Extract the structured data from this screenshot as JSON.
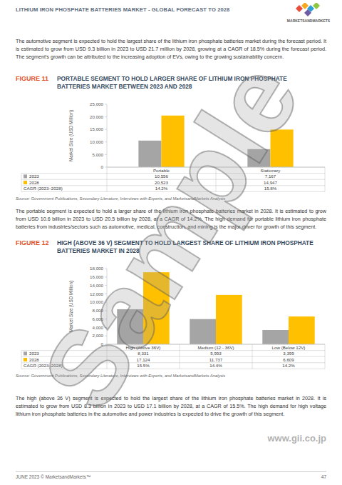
{
  "header": {
    "title": "LITHIUM IRON PHOSPHATE BATTERIES MARKET - GLOBAL FORECAST TO 2028",
    "logo": "MARKETSANDMARKETS"
  },
  "paragraphs": [
    "The automotive segment is expected to hold the largest share of the lithium iron phosphate batteries market during the forecast period. It is estimated to grow from USD 9.3 billion in 2023 to USD 21.7 million by 2028, growing at a CAGR of 18.5% during the forecast period. The segment's growth can be attributed to the increasing adoption of EVs, owing to the growing sustainability concern.",
    "The portable segment is expected to hold a larger share of the lithium iron phosphate batteries market in 2028. It is estimated to grow from USD 10.6 billion in 2023 to USD 20.5 billion by 2028, at a CAGR of 14.2%. The high demand for portable lithium iron phosphate batteries from industries/sectors such as automotive, medical, construction, and mining is the major driver for growth of this segment.",
    "The high (above 36 V) segment is expected to hold the largest share of the lithium iron phosphate batteries market in 2028. It is estimated to grow from USD 8.3 billion in 2023 to USD 17.1 billion by 2028, at a CAGR of 15.5%. The high demand for high voltage lithium iron phosphate batteries in the automotive and power industries is expected to drive the growth of this segment."
  ],
  "figures": [
    {
      "label": "FIGURE 11",
      "source": "Source: Government Publications, Secondary Literature, Interviews with Experts, and MarketsandMarkets Analysis"
    },
    {
      "label": "FIGURE 12",
      "source": "Source: Government Publications, Secondary Literature, Interviews with Experts, and MarketsandMarkets Analysis"
    }
  ],
  "chart_data": [
    {
      "type": "bar",
      "title": "PORTABLE SEGMENT TO HOLD LARGER SHARE OF LITHIUM IRON PHOSPHATE BATTERIES MARKET BETWEEN 2023 AND 2028",
      "ylabel": "Market Size (USD Million)",
      "categories": [
        "Portable",
        "Stationary"
      ],
      "series": [
        {
          "name": "2023",
          "color": "#a5a5a5",
          "values": [
            10556,
            7167
          ],
          "value_labels": [
            "10,556",
            "7,167"
          ]
        },
        {
          "name": "2028",
          "color": "#ffc000",
          "values": [
            20523,
            14947
          ],
          "value_labels": [
            "20,523",
            "14,947"
          ]
        }
      ],
      "cagr": {
        "label": "CAGR (2023–2028)",
        "values": [
          "14.2%",
          "15.8%"
        ]
      },
      "ylim": [
        0,
        25000
      ],
      "yticks": [
        0,
        {
          "value": 5000,
          "label": "5,000"
        },
        {
          "value": 10000,
          "label": "10,000"
        },
        {
          "value": 15000,
          "label": "15,000"
        },
        {
          "value": 20000,
          "label": "20,000"
        },
        {
          "value": 25000,
          "label": "25,000"
        }
      ],
      "grid": false
    },
    {
      "type": "bar",
      "title": "HIGH (ABOVE 36 V) SEGMENT TO HOLD LARGEST SHARE OF LITHIUM IRON PHOSPHATE BATTERIES MARKET IN 2028",
      "ylabel": "Market Size (USD Million)",
      "categories": [
        "High (Above 36V)",
        "Medium (12 - 36V)",
        "Low (Below 12V)"
      ],
      "series": [
        {
          "name": "2023",
          "color": "#a5a5a5",
          "values": [
            8331,
            5993,
            3399
          ],
          "value_labels": [
            "8,331",
            "5,993",
            "3,399"
          ]
        },
        {
          "name": "2028",
          "color": "#ffc000",
          "values": [
            17124,
            11737,
            6609
          ],
          "value_labels": [
            "17,124",
            "11,737",
            "6,609"
          ]
        }
      ],
      "cagr": {
        "label": "CAGR (2023–2028)",
        "values": [
          "15.5%",
          "14.4%",
          "14.2%"
        ]
      },
      "ylim": [
        0,
        18000
      ],
      "yticks": [
        0,
        {
          "value": 2000,
          "label": "2,000"
        },
        {
          "value": 4000,
          "label": "4,000"
        },
        {
          "value": 6000,
          "label": "6,000"
        },
        {
          "value": 8000,
          "label": "8,000"
        },
        {
          "value": 10000,
          "label": "10,000"
        },
        {
          "value": 12000,
          "label": "12,000"
        },
        {
          "value": 14000,
          "label": "14,000"
        },
        {
          "value": 16000,
          "label": "16,000"
        },
        {
          "value": 18000,
          "label": "18,000"
        }
      ],
      "grid": false
    }
  ],
  "footer": {
    "left": "JUNE 2023 © MarketsandMarkets™",
    "page": "47"
  },
  "watermarks": {
    "main": "Sample",
    "site": "www.gii.co.jp"
  }
}
